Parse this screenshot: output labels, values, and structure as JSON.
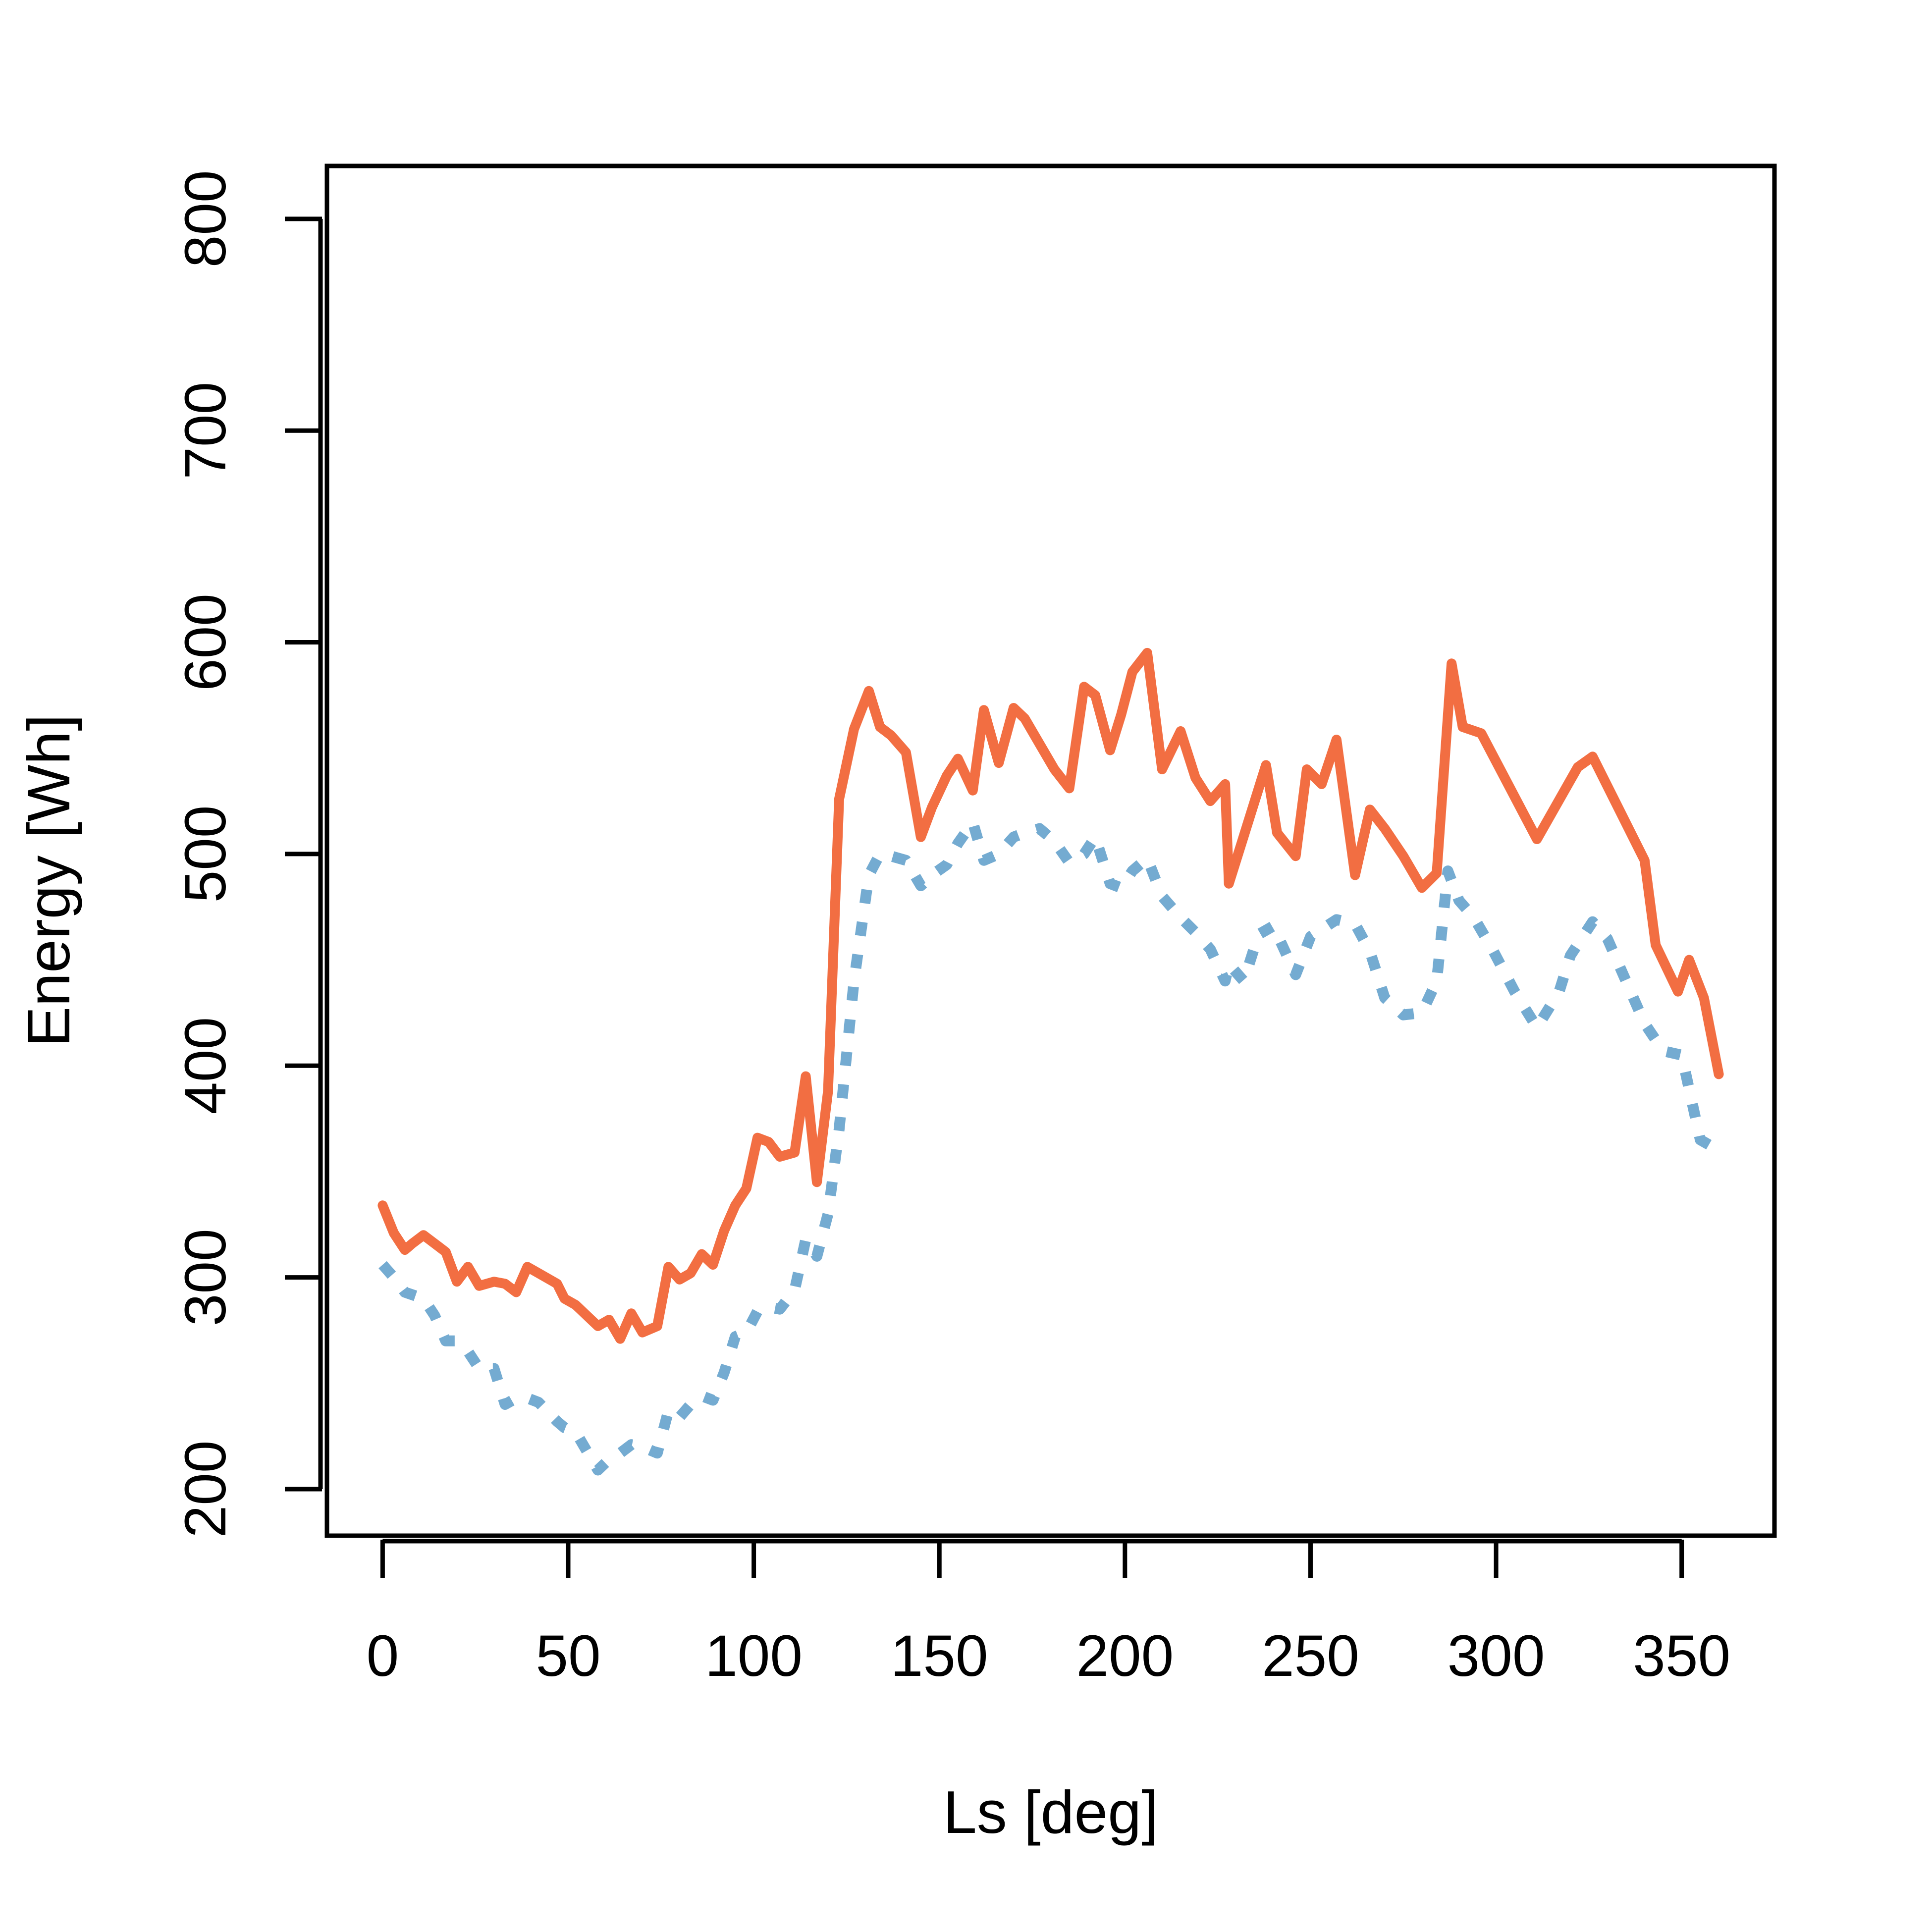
{
  "chart_data": {
    "type": "line",
    "title": "",
    "xlabel": "Ls [deg]",
    "ylabel": "Energy [Wh]",
    "xlim": [
      -15,
      375
    ],
    "ylim": [
      178,
      825
    ],
    "x_ticks": [
      0,
      50,
      100,
      150,
      200,
      250,
      300,
      350
    ],
    "x_tick_labels": [
      "0",
      "50",
      "100",
      "150",
      "200",
      "250",
      "300",
      "350"
    ],
    "y_ticks": [
      200,
      300,
      400,
      500,
      600,
      700,
      800
    ],
    "y_tick_labels": [
      "200",
      "300",
      "400",
      "500",
      "600",
      "700",
      "800"
    ],
    "grid": false,
    "legend": "none",
    "colors": {
      "background": "#ffffff",
      "axis": "#000000",
      "series_solid": "#F26E42",
      "series_dotted": "#74ABD1"
    },
    "series": [
      {
        "style": "solid",
        "x": [
          0,
          3,
          6,
          8,
          11,
          14,
          17,
          20,
          23,
          26,
          30,
          33,
          36,
          39,
          42,
          47,
          49,
          52,
          58,
          61,
          64,
          67,
          70,
          74,
          77,
          80,
          83,
          86,
          89,
          92,
          95,
          98,
          101,
          104,
          107,
          111,
          114,
          117,
          120,
          123,
          127,
          131,
          134,
          137,
          141,
          145,
          148,
          152,
          155,
          159,
          162,
          166,
          170,
          173,
          177,
          181,
          185,
          189,
          192,
          196,
          199,
          202,
          206,
          210,
          215,
          219,
          223,
          227,
          228,
          238,
          241,
          246,
          249,
          253,
          257,
          262,
          266,
          270,
          275,
          280,
          284,
          288,
          291,
          296,
          311,
          322,
          326,
          340,
          343,
          349,
          352,
          356,
          360
        ],
        "y": [
          334,
          321,
          313,
          316,
          320,
          316,
          312,
          298,
          305,
          296,
          298,
          297,
          293,
          305,
          302,
          297,
          290,
          287,
          277,
          280,
          271,
          283,
          274,
          277,
          305,
          299,
          302,
          311,
          306,
          322,
          334,
          342,
          366,
          364,
          357,
          359,
          395,
          345,
          388,
          526,
          559,
          577,
          560,
          556,
          548,
          508,
          522,
          537,
          545,
          530,
          568,
          543,
          569,
          564,
          552,
          540,
          531,
          579,
          575,
          549,
          566,
          586,
          595,
          540,
          558,
          536,
          525,
          533,
          486,
          542,
          510,
          499,
          540,
          533,
          554,
          490,
          521,
          512,
          499,
          484,
          491,
          590,
          560,
          557,
          507,
          541,
          546,
          497,
          457,
          435,
          450,
          432,
          396
        ]
      },
      {
        "style": "dotted",
        "x": [
          0,
          3,
          6,
          11,
          14,
          17,
          20,
          23,
          26,
          30,
          33,
          36,
          39,
          42,
          47,
          49,
          52,
          58,
          61,
          64,
          67,
          70,
          74,
          77,
          80,
          83,
          86,
          89,
          92,
          95,
          98,
          101,
          104,
          107,
          111,
          114,
          117,
          120,
          123,
          127,
          131,
          134,
          137,
          141,
          145,
          148,
          152,
          155,
          159,
          162,
          166,
          170,
          173,
          177,
          181,
          185,
          189,
          192,
          196,
          199,
          202,
          206,
          210,
          215,
          219,
          223,
          227,
          228,
          232,
          236,
          240,
          246,
          250,
          257,
          262,
          266,
          270,
          275,
          280,
          284,
          287,
          290,
          294,
          299,
          305,
          311,
          317,
          320,
          326,
          330,
          335,
          340,
          345,
          350,
          355,
          359
        ],
        "y": [
          306,
          300,
          293,
          290,
          282,
          270,
          270,
          265,
          257,
          257,
          240,
          243,
          243,
          241,
          232,
          229,
          227,
          209,
          214,
          217,
          221,
          220,
          217,
          237,
          234,
          240,
          244,
          242,
          255,
          272,
          274,
          284,
          286,
          285,
          294,
          318,
          310,
          330,
          370,
          440,
          490,
          500,
          499,
          497,
          485,
          490,
          495,
          505,
          515,
          497,
          500,
          508,
          510,
          512,
          506,
          496,
          500,
          508,
          486,
          484,
          492,
          498,
          480,
          470,
          463,
          455,
          440,
          448,
          440,
          462,
          466,
          443,
          461,
          469,
          467,
          454,
          432,
          424,
          425,
          440,
          492,
          478,
          470,
          455,
          435,
          418,
          435,
          452,
          468,
          460,
          440,
          420,
          407,
          405,
          365,
          361
        ]
      }
    ]
  }
}
